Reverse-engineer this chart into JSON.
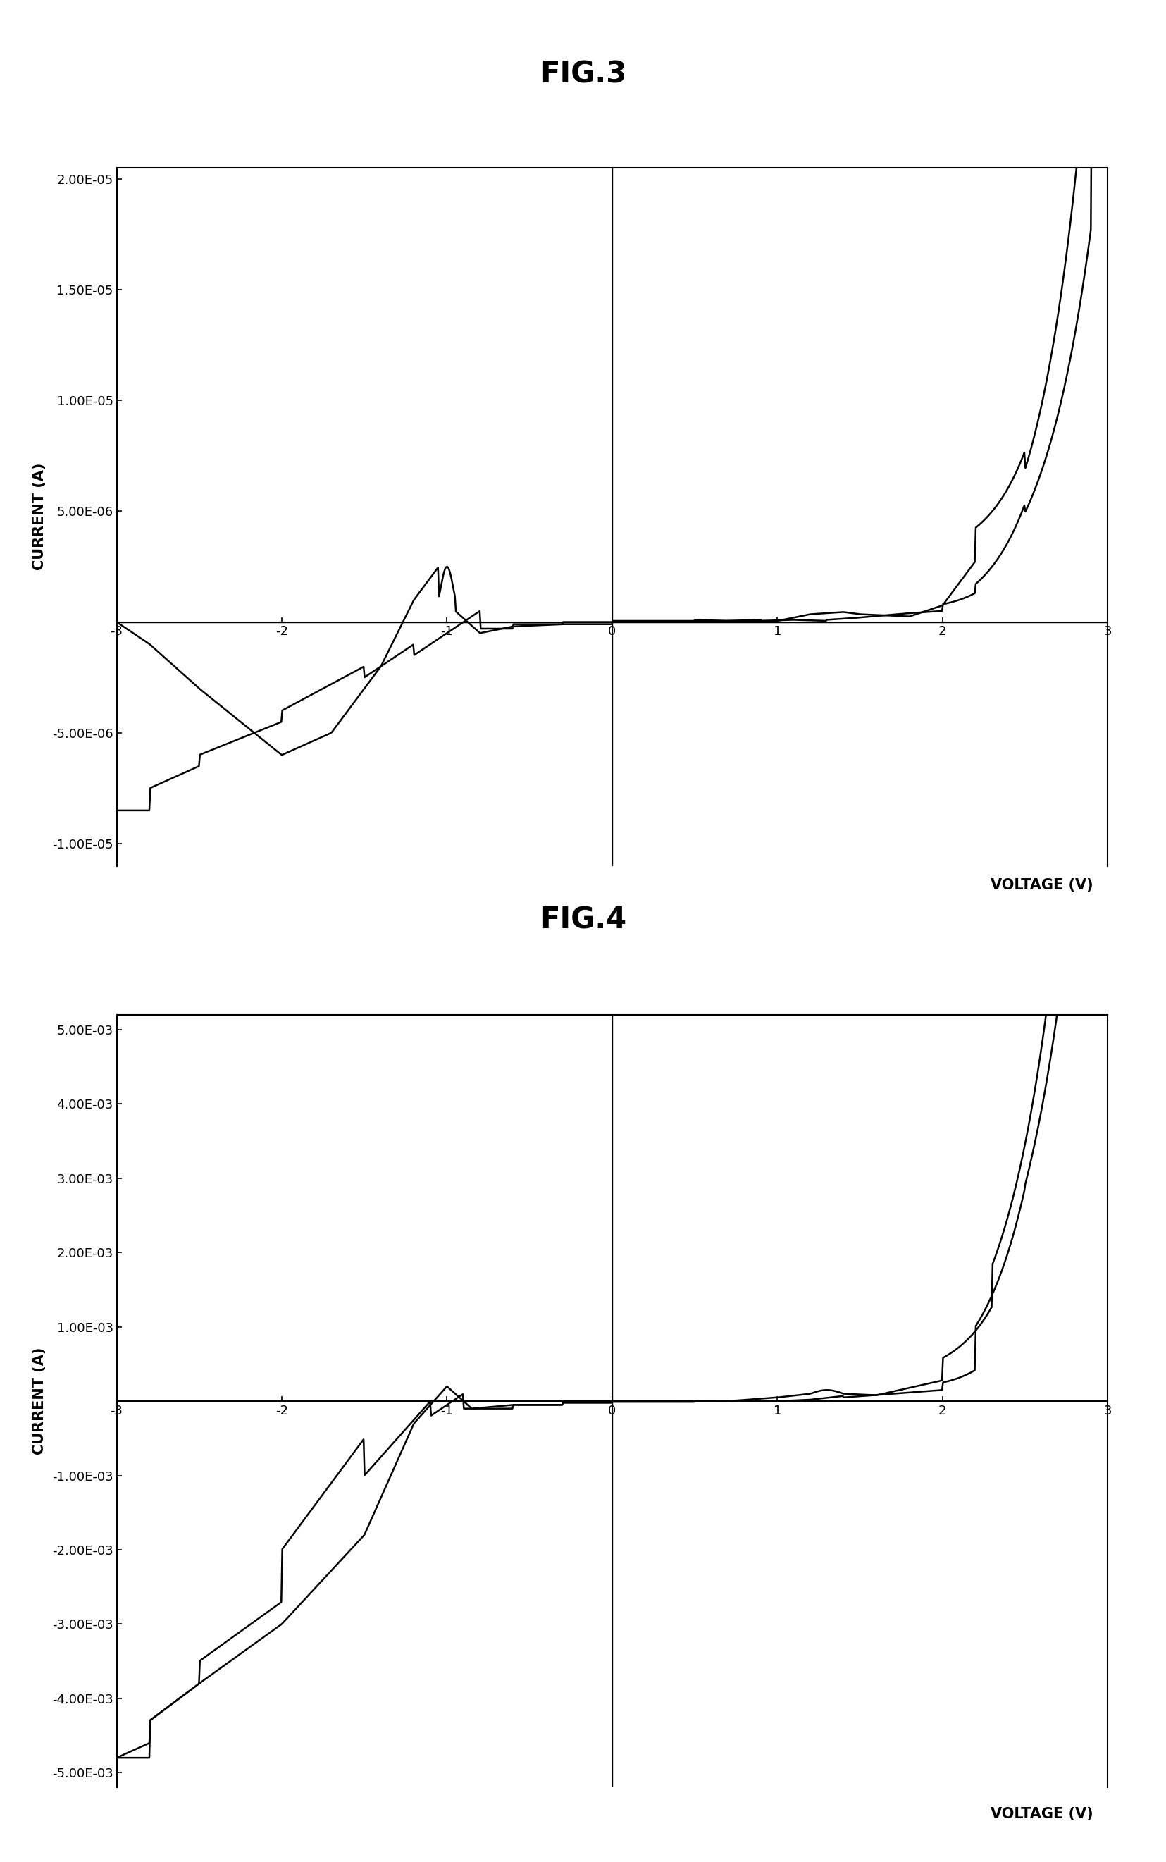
{
  "fig3_title": "FIG.3",
  "fig4_title": "FIG.4",
  "fig3_ylabel": "CURRENT (A)",
  "fig4_ylabel": "CURRENT (A)",
  "fig3_xlabel": "VOLTAGE (V)",
  "fig4_xlabel": "VOLTAGE (V)",
  "fig3_xlim": [
    -3.2,
    3.2
  ],
  "fig3_ylim": [
    -1.1e-05,
    2.1e-05
  ],
  "fig4_xlim": [
    -3.2,
    3.2
  ],
  "fig4_ylim": [
    -0.0055,
    0.0055
  ],
  "fig3_yticks": [
    -1e-05,
    -5e-06,
    5e-06,
    1e-05,
    1.5e-05,
    2e-05
  ],
  "fig3_ytick_labels": [
    "-1.00E-05",
    "-5.00E-06",
    "5.00E-06",
    "1.00E-05",
    "1.50E-05",
    "2.00E-05"
  ],
  "fig3_xticks": [
    -3,
    -2,
    -1,
    0,
    1,
    2,
    3
  ],
  "fig4_yticks": [
    -0.005,
    -0.004,
    -0.003,
    -0.002,
    -0.001,
    0.001,
    0.002,
    0.003,
    0.004,
    0.005
  ],
  "fig4_ytick_labels": [
    "-5.00E-03",
    "-4.00E-03",
    "-3.00E-03",
    "-2.00E-03",
    "-1.00E-03",
    "1.00E-03",
    "2.00E-03",
    "3.00E-03",
    "4.00E-03",
    "5.00E-03"
  ],
  "fig4_xticks": [
    -3,
    -2,
    -1,
    0,
    1,
    2,
    3
  ],
  "line_color": "#000000",
  "background_color": "#ffffff",
  "title_fontsize": 30,
  "label_fontsize": 15,
  "tick_fontsize": 13,
  "ylabel_fontsize": 13
}
